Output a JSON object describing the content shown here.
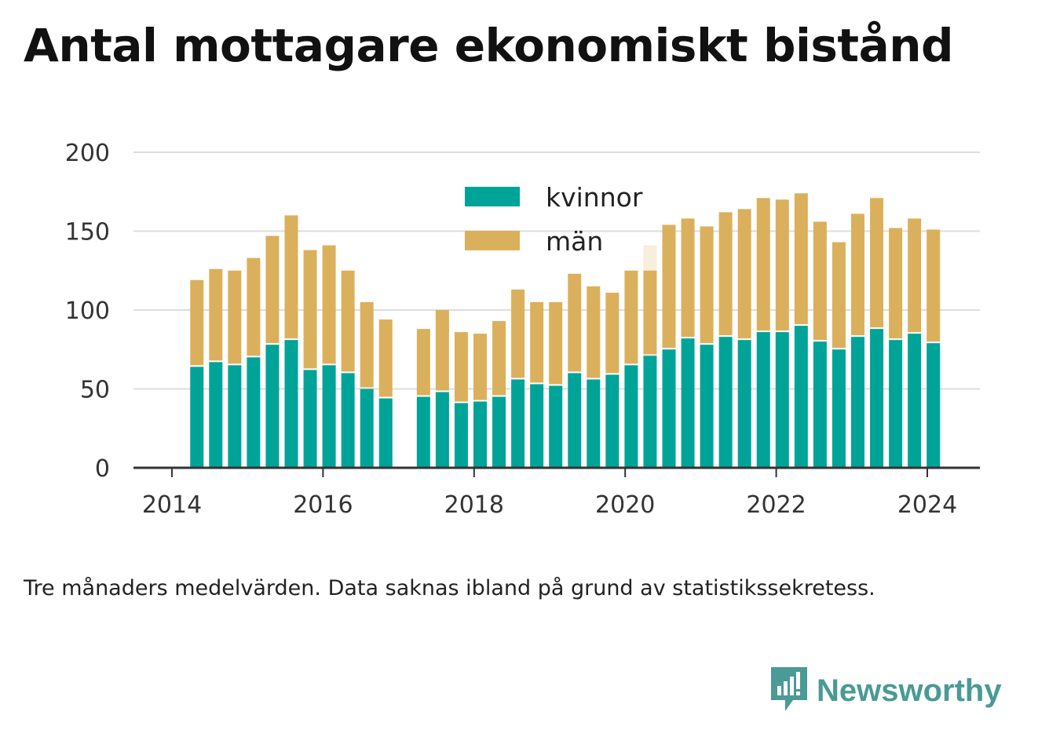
{
  "title": "Antal mottagare ekonomiskt bistånd",
  "footnote": "Tre månaders medelvärden. Data saknas ibland på grund av statistikssekretess.",
  "brand": {
    "name": "Newsworthy",
    "icon": "newsworthy-logo-icon"
  },
  "colors": {
    "kvinnor": "#00a398",
    "man": "#dbb05c",
    "grid": "#dddddd",
    "axis": "#333333"
  },
  "chart_data": {
    "type": "bar",
    "stacked": true,
    "legend_position": "top-center",
    "grid": true,
    "ylim": [
      0,
      200
    ],
    "xlim": [
      2013.5,
      2024.7
    ],
    "yticks": [
      0,
      50,
      100,
      150,
      200
    ],
    "xticks": [
      2014,
      2016,
      2018,
      2020,
      2022,
      2024
    ],
    "x": [
      2014.33,
      2014.58,
      2014.83,
      2015.08,
      2015.33,
      2015.58,
      2015.83,
      2016.08,
      2016.33,
      2016.58,
      2016.83,
      2017.33,
      2017.58,
      2017.83,
      2018.08,
      2018.33,
      2018.58,
      2018.83,
      2019.08,
      2019.33,
      2019.58,
      2019.83,
      2020.08,
      2020.33,
      2020.58,
      2020.83,
      2021.08,
      2021.33,
      2021.58,
      2021.83,
      2022.08,
      2022.33,
      2022.58,
      2022.83,
      2023.08,
      2023.33,
      2023.58,
      2023.83,
      2024.08
    ],
    "series": [
      {
        "name": "kvinnor",
        "values": [
          64,
          67,
          65,
          70,
          78,
          81,
          62,
          65,
          60,
          50,
          44,
          45,
          48,
          41,
          42,
          45,
          56,
          53,
          52,
          60,
          56,
          59,
          65,
          71,
          75,
          82,
          78,
          83,
          81,
          86,
          86,
          90,
          80,
          75,
          83,
          88,
          81,
          85,
          79
        ]
      },
      {
        "name": "män",
        "values": [
          55,
          59,
          60,
          63,
          69,
          79,
          76,
          76,
          65,
          55,
          50,
          43,
          52,
          45,
          43,
          48,
          57,
          52,
          53,
          63,
          59,
          52,
          60,
          54,
          79,
          76,
          75,
          79,
          83,
          85,
          84,
          84,
          76,
          68,
          78,
          83,
          71,
          73,
          72
        ]
      }
    ],
    "ghost_bar": {
      "x": 2020.33,
      "value": 141
    }
  }
}
